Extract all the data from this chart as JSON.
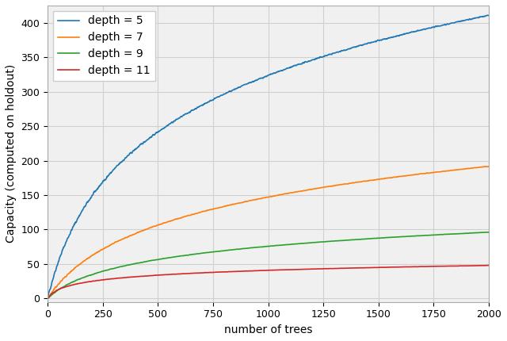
{
  "xlabel": "number of trees",
  "ylabel": "Capacity (computed on holdout)",
  "xlim": [
    0,
    2000
  ],
  "ylim": [
    -5,
    425
  ],
  "xticks": [
    0,
    250,
    500,
    750,
    1000,
    1250,
    1500,
    1750,
    2000
  ],
  "yticks": [
    0,
    50,
    100,
    150,
    200,
    250,
    300,
    350,
    400
  ],
  "series": [
    {
      "label": "depth = 5",
      "color": "#1f77b4",
      "a": 134.9,
      "b": 0.01
    },
    {
      "label": "depth = 7",
      "color": "#ff7f0e",
      "a": 70.8,
      "b": 0.007
    },
    {
      "label": "depth = 9",
      "color": "#2ca02c",
      "a": 31.6,
      "b": 0.01
    },
    {
      "label": "depth = 11",
      "color": "#d62728",
      "a": 10.4,
      "b": 0.05
    }
  ],
  "legend_loc": "upper left",
  "grid_color": "#d0d0d0",
  "plot_bg_color": "#f0f0f0",
  "fig_bg_color": "#ffffff",
  "figsize": [
    6.4,
    4.3
  ],
  "dpi": 100,
  "linewidth": 1.2,
  "noise_std": [
    2.5,
    1.2,
    0.6,
    0.4
  ],
  "noise_smooth": [
    5,
    5,
    5,
    5
  ]
}
